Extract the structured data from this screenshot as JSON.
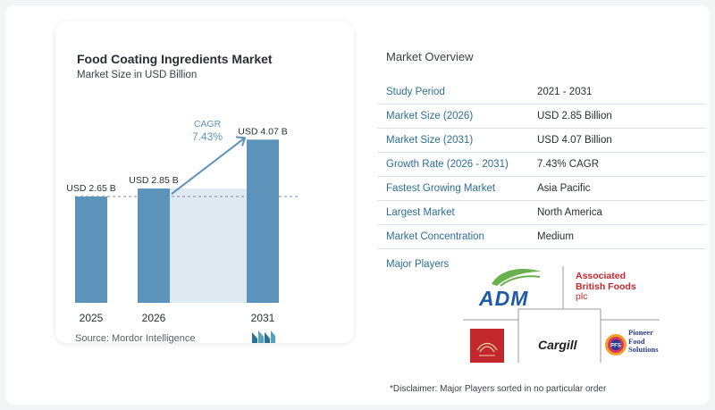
{
  "chart": {
    "title": "Food Coating Ingredients Market",
    "subtitle": "Market Size in USD Billion",
    "source": "Source:  Mordor Intelligence",
    "cagr_label": "CAGR",
    "cagr_value": "7.43%"
  },
  "chart_data": {
    "type": "bar",
    "title": "Food Coating Ingredients Market",
    "subtitle": "Market Size in USD Billion",
    "categories": [
      "2025",
      "2026",
      "2031"
    ],
    "values": [
      2.65,
      2.85,
      4.07
    ],
    "data_labels": [
      "USD 2.65 B",
      "USD 2.85 B",
      "USD 4.07 B"
    ],
    "xlabel": "",
    "ylabel": "",
    "ylim": [
      0,
      4.3
    ],
    "grid": false,
    "annotation": {
      "text": "CAGR 7.43%",
      "from": "2026",
      "to": "2031"
    },
    "bar_color": "#5b93bb",
    "highlight_color": "#dfe9f2"
  },
  "overview": {
    "title": "Market Overview",
    "rows": [
      {
        "key": "Study Period",
        "value": "2021 - 2031"
      },
      {
        "key": "Market Size (2026)",
        "value": "USD 2.85 Billion"
      },
      {
        "key": "Market Size (2031)",
        "value": "USD 4.07 Billion"
      },
      {
        "key": "Growth Rate (2026 - 2031)",
        "value": "7.43% CAGR"
      },
      {
        "key": "Fastest Growing Market",
        "value": "Asia Pacific"
      },
      {
        "key": "Largest Market",
        "value": "North America"
      },
      {
        "key": "Market Concentration",
        "value": "Medium"
      }
    ],
    "players_label": "Major Players",
    "players": {
      "adm": "ADM",
      "abf_line1": "Associated",
      "abf_line2": "British Foods",
      "abf_line3": "plc",
      "cargill": "Cargill",
      "pfs_line1": "Pioneer",
      "pfs_line2": "Food",
      "pfs_line3": "Solutions",
      "pfs_badge": "PFS"
    },
    "disclaimer": "*Disclaimer: Major Players sorted in no particular order"
  },
  "colors": {
    "accent": "#2d6f95",
    "bar": "#5b93bb",
    "highlight": "#dfe9f2",
    "adm_blue": "#1f5aa8",
    "adm_green": "#6ab04c",
    "abf_red": "#c1272d"
  }
}
